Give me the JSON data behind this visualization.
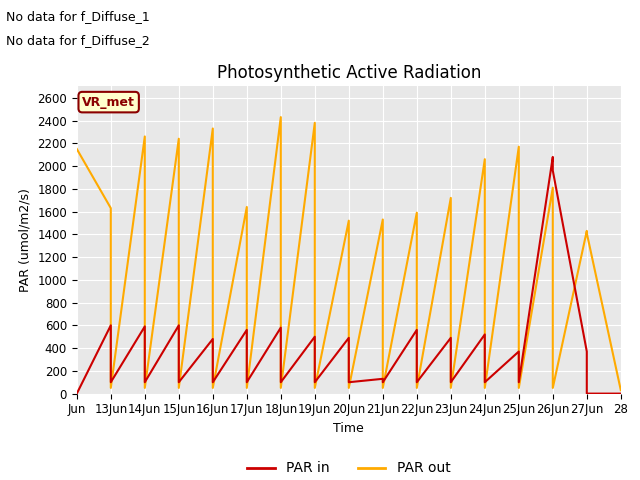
{
  "title": "Photosynthetic Active Radiation",
  "ylabel": "PAR (umol/m2/s)",
  "xlabel": "Time",
  "note_lines": [
    "No data for f_Diffuse_1",
    "No data for f_Diffuse_2"
  ],
  "vr_met_label": "VR_met",
  "fig_bg_color": "#ffffff",
  "plot_bg_color": "#e8e8e8",
  "ylim": [
    0,
    2700
  ],
  "yticks": [
    0,
    200,
    400,
    600,
    800,
    1000,
    1200,
    1400,
    1600,
    1800,
    2000,
    2200,
    2400,
    2600
  ],
  "xtick_positions": [
    12,
    13,
    14,
    15,
    16,
    17,
    18,
    19,
    20,
    21,
    22,
    23,
    24,
    25,
    26,
    27,
    28
  ],
  "xtick_labels": [
    "Jun",
    "13Jun",
    "14Jun",
    "15Jun",
    "16Jun",
    "17Jun",
    "18Jun",
    "19Jun",
    "20Jun",
    "21Jun",
    "22Jun",
    "23Jun",
    "24Jun",
    "25Jun",
    "26Jun",
    "27Jun",
    "28"
  ],
  "par_in_color": "#cc0000",
  "par_out_color": "#ffaa00",
  "par_in_x": [
    12,
    13,
    13,
    14,
    14,
    15,
    15,
    16,
    16,
    17,
    17,
    18,
    18,
    19,
    19,
    20,
    20,
    21,
    21,
    22,
    22,
    23,
    23,
    24,
    24,
    25,
    25,
    26,
    26,
    27,
    27,
    28
  ],
  "par_in_y": [
    0,
    600,
    100,
    590,
    100,
    600,
    100,
    480,
    100,
    560,
    100,
    580,
    100,
    500,
    100,
    490,
    100,
    130,
    100,
    560,
    100,
    490,
    100,
    520,
    100,
    370,
    100,
    2080,
    1960,
    370,
    0,
    0
  ],
  "par_out_x": [
    12,
    13,
    13,
    14,
    14,
    15,
    15,
    16,
    16,
    17,
    17,
    18,
    18,
    19,
    19,
    20,
    20,
    21,
    21,
    22,
    22,
    23,
    23,
    24,
    24,
    25,
    25,
    26,
    26,
    27,
    27,
    28
  ],
  "par_out_y": [
    2150,
    1630,
    50,
    2260,
    50,
    2240,
    50,
    2330,
    50,
    1640,
    50,
    2430,
    50,
    2380,
    50,
    1520,
    50,
    1530,
    50,
    1590,
    50,
    1720,
    50,
    2060,
    50,
    2170,
    50,
    1810,
    50,
    1430,
    1410,
    30
  ],
  "title_fontsize": 12,
  "label_fontsize": 9,
  "tick_fontsize": 8.5,
  "legend_fontsize": 10
}
